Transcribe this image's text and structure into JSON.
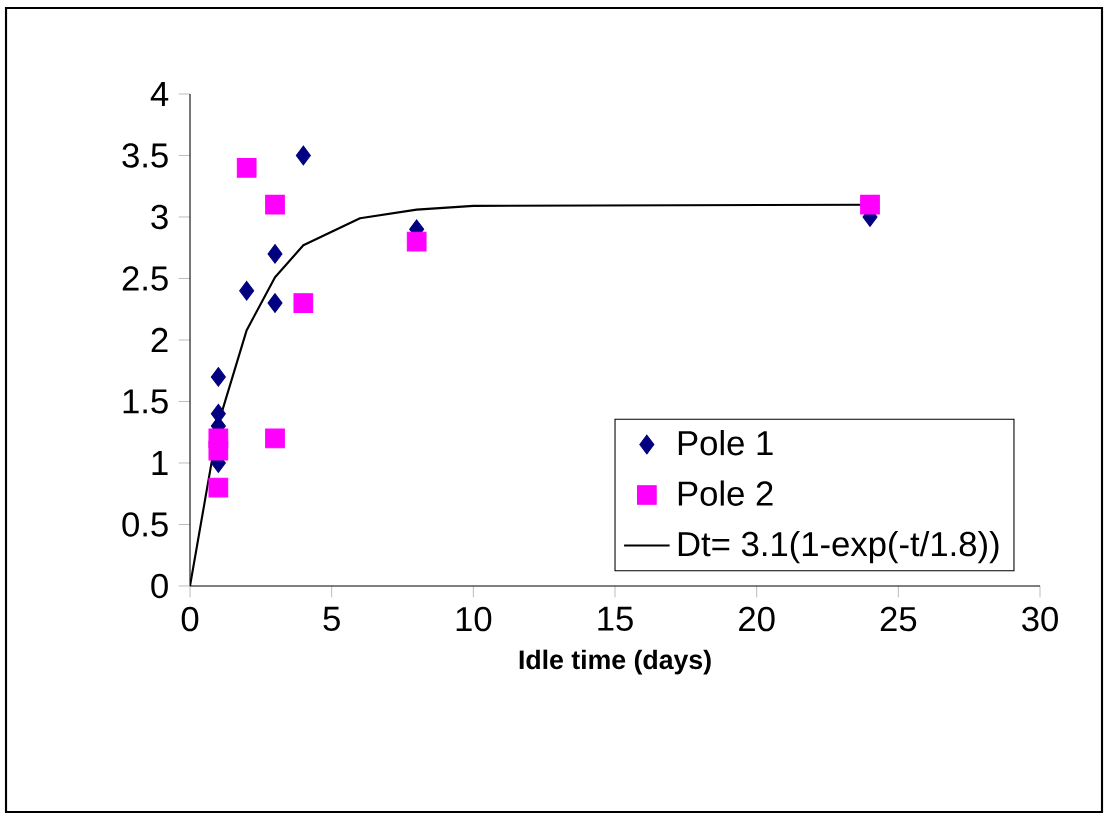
{
  "chart_data": {
    "type": "scatter",
    "xlabel": "Idle time (days)",
    "series": [
      {
        "name": "Pole 1",
        "color": "#000080",
        "marker": "diamond",
        "x": [
          1,
          1,
          1,
          1,
          2,
          3,
          3,
          4,
          8,
          24
        ],
        "values": [
          1.0,
          1.3,
          1.4,
          1.7,
          2.4,
          2.3,
          2.7,
          3.5,
          2.9,
          3.0
        ]
      },
      {
        "name": "Pole 2",
        "color": "#ff00ff",
        "marker": "square",
        "x": [
          1,
          1,
          1,
          2,
          3,
          3,
          4,
          8,
          24
        ],
        "values": [
          0.8,
          1.1,
          1.2,
          3.4,
          3.1,
          1.2,
          2.3,
          2.8,
          3.1
        ]
      },
      {
        "name": "Dt= 3.1(1-exp(-t/1.8))",
        "type": "line",
        "color": "#000000",
        "marker": "none",
        "x": [
          0,
          1,
          2,
          3,
          4,
          6,
          8,
          10,
          24
        ],
        "values": [
          0,
          1.32,
          2.08,
          2.51,
          2.77,
          2.99,
          3.06,
          3.09,
          3.1
        ]
      }
    ],
    "xlim": [
      0,
      30
    ],
    "xticks": [
      0,
      5,
      10,
      15,
      20,
      25,
      30
    ],
    "ylim": [
      0,
      4
    ],
    "yticks": [
      0,
      0.5,
      1,
      1.5,
      2,
      2.5,
      3,
      3.5,
      4
    ],
    "grid": false,
    "legend": "bottom right"
  }
}
